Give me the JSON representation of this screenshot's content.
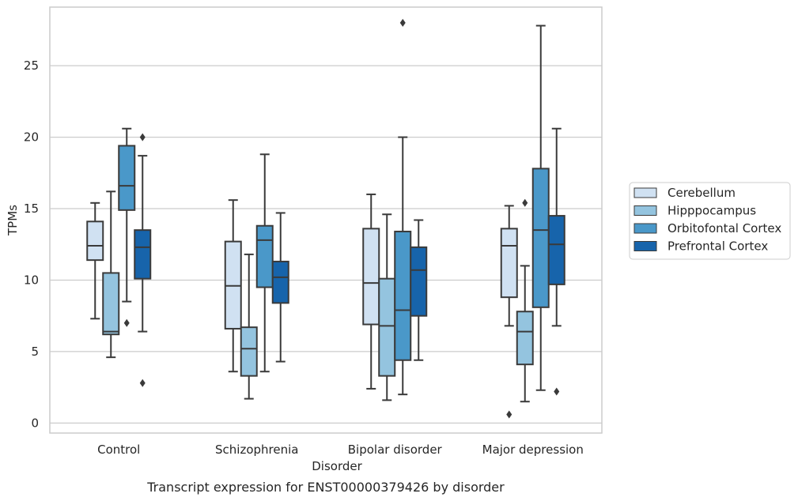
{
  "chart_data": {
    "type": "box",
    "title": "",
    "caption": "Transcript expression for ENST00000379426 by disorder",
    "xlabel": "Disorder",
    "ylabel": "TPMs",
    "ylim": [
      -0.7,
      29.1
    ],
    "yticks": [
      0,
      5,
      10,
      15,
      20,
      25
    ],
    "grid": "horizontal",
    "legend_position": "right",
    "categories": [
      "Control",
      "Schizophrenia",
      "Bipolar disorder",
      "Major depression"
    ],
    "series": [
      {
        "name": "Cerebellum",
        "color": "#d0e1f2",
        "boxes": [
          {
            "whislo": 7.3,
            "q1": 11.4,
            "med": 12.4,
            "q3": 14.1,
            "whishi": 15.4,
            "fliers": []
          },
          {
            "whislo": 3.6,
            "q1": 6.6,
            "med": 9.6,
            "q3": 12.7,
            "whishi": 15.6,
            "fliers": []
          },
          {
            "whislo": 2.4,
            "q1": 6.9,
            "med": 9.8,
            "q3": 13.6,
            "whishi": 16.0,
            "fliers": []
          },
          {
            "whislo": 6.8,
            "q1": 8.8,
            "med": 12.4,
            "q3": 13.6,
            "whishi": 15.2,
            "fliers": [
              0.6
            ]
          }
        ]
      },
      {
        "name": "Hipppocampus",
        "color": "#94c4df",
        "boxes": [
          {
            "whislo": 4.6,
            "q1": 6.2,
            "med": 6.4,
            "q3": 10.5,
            "whishi": 16.2,
            "fliers": []
          },
          {
            "whislo": 1.7,
            "q1": 3.3,
            "med": 5.2,
            "q3": 6.7,
            "whishi": 11.8,
            "fliers": []
          },
          {
            "whislo": 1.6,
            "q1": 3.3,
            "med": 6.8,
            "q3": 10.1,
            "whishi": 14.6,
            "fliers": []
          },
          {
            "whislo": 1.5,
            "q1": 4.1,
            "med": 6.4,
            "q3": 7.8,
            "whishi": 11.0,
            "fliers": [
              15.4
            ]
          }
        ]
      },
      {
        "name": "Orbitofontal Cortex",
        "color": "#4a98c9",
        "boxes": [
          {
            "whislo": 8.5,
            "q1": 14.9,
            "med": 16.6,
            "q3": 19.4,
            "whishi": 20.6,
            "fliers": [
              7.0
            ]
          },
          {
            "whislo": 3.6,
            "q1": 9.5,
            "med": 12.8,
            "q3": 13.8,
            "whishi": 18.8,
            "fliers": []
          },
          {
            "whislo": 2.0,
            "q1": 4.4,
            "med": 7.9,
            "q3": 13.4,
            "whishi": 20.0,
            "fliers": [
              28.0
            ]
          },
          {
            "whislo": 2.3,
            "q1": 8.1,
            "med": 13.5,
            "q3": 17.8,
            "whishi": 27.8,
            "fliers": []
          }
        ]
      },
      {
        "name": "Prefrontal Cortex",
        "color": "#1764ab",
        "boxes": [
          {
            "whislo": 6.4,
            "q1": 10.1,
            "med": 12.3,
            "q3": 13.5,
            "whishi": 18.7,
            "fliers": [
              20.0,
              2.8
            ]
          },
          {
            "whislo": 4.3,
            "q1": 8.4,
            "med": 10.2,
            "q3": 11.3,
            "whishi": 14.7,
            "fliers": []
          },
          {
            "whislo": 4.4,
            "q1": 7.5,
            "med": 10.7,
            "q3": 12.3,
            "whishi": 14.2,
            "fliers": []
          },
          {
            "whislo": 6.8,
            "q1": 9.7,
            "med": 12.5,
            "q3": 14.5,
            "whishi": 20.6,
            "fliers": [
              2.2
            ]
          }
        ]
      }
    ]
  }
}
